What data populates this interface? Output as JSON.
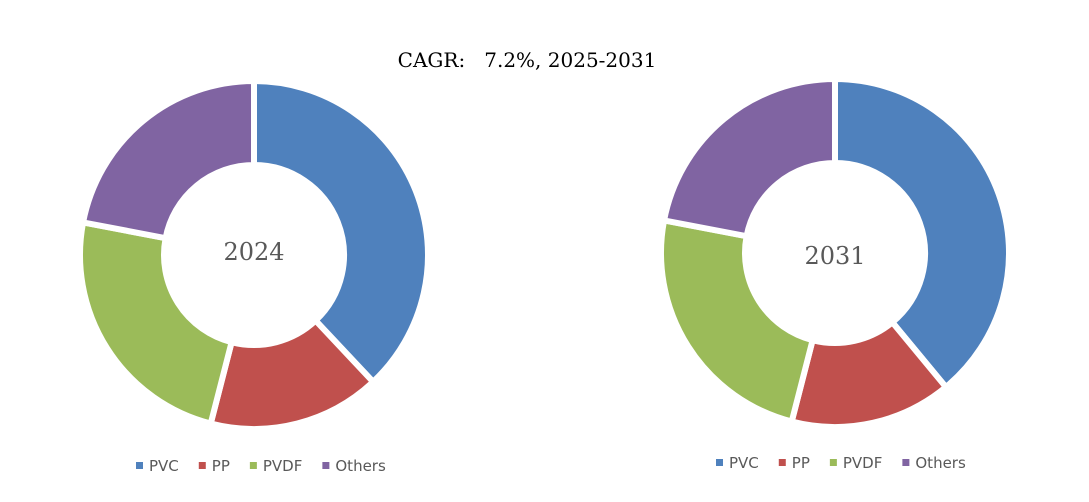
{
  "chart_data": {
    "title": "CAGR:   7.2%, 2025-2031",
    "type": "donut",
    "categories": [
      "PVC",
      "PP",
      "PVDF",
      "Others"
    ],
    "colors": [
      "#4F81BD",
      "#C0504D",
      "#9BBB59",
      "#8064A2"
    ],
    "charts": [
      {
        "label": "2024",
        "values": [
          38,
          16,
          24,
          22
        ]
      },
      {
        "label": "2031",
        "values": [
          39,
          15,
          24,
          22
        ]
      }
    ]
  }
}
